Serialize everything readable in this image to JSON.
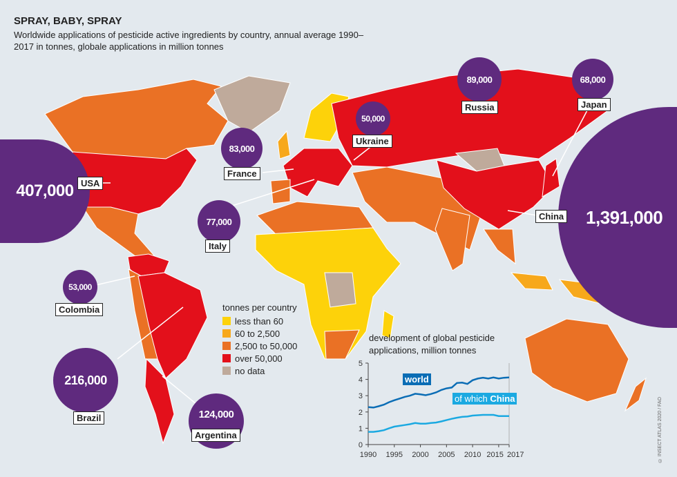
{
  "title": "SPRAY, BABY, SPRAY",
  "subtitle": "Worldwide applications of pesticide active ingredients by country, annual average 1990–2017 in tonnes, globale applications in million tonnes",
  "colors": {
    "less_than_60": "#fdd20a",
    "60_to_2500": "#f7a81b",
    "2500_to_50000": "#ea7125",
    "over_50000": "#e3101b",
    "no_data": "#bfaa9b",
    "bubble": "#5f2a7e",
    "world_line": "#0b6db5",
    "china_line": "#1ba9e1",
    "background": "#e3e9ee"
  },
  "countries": [
    {
      "name": "USA",
      "value": "407,000"
    },
    {
      "name": "China",
      "value": "1,391,000"
    },
    {
      "name": "Brazil",
      "value": "216,000"
    },
    {
      "name": "Argentina",
      "value": "124,000"
    },
    {
      "name": "Russia",
      "value": "89,000"
    },
    {
      "name": "France",
      "value": "83,000"
    },
    {
      "name": "Italy",
      "value": "77,000"
    },
    {
      "name": "Japan",
      "value": "68,000"
    },
    {
      "name": "Colombia",
      "value": "53,000"
    },
    {
      "name": "Ukraine",
      "value": "50,000"
    }
  ],
  "legend": {
    "title": "tonnes per country",
    "items": [
      {
        "label": "less than 60",
        "color": "#fdd20a"
      },
      {
        "label": "60 to 2,500",
        "color": "#f7a81b"
      },
      {
        "label": "2,500 to 50,000",
        "color": "#ea7125"
      },
      {
        "label": "over 50,000",
        "color": "#e3101b"
      },
      {
        "label": "no data",
        "color": "#bfaa9b"
      }
    ]
  },
  "chart_data": {
    "type": "line",
    "title": "development of global pesticide applications, million tonnes",
    "x": [
      1990,
      1991,
      1992,
      1993,
      1994,
      1995,
      1996,
      1997,
      1998,
      1999,
      2000,
      2001,
      2002,
      2003,
      2004,
      2005,
      2006,
      2007,
      2008,
      2009,
      2010,
      2011,
      2012,
      2013,
      2014,
      2015,
      2016,
      2017
    ],
    "xticks": [
      "1990",
      "1995",
      "2000",
      "2005",
      "2010",
      "2015",
      "2017"
    ],
    "yticks": [
      "0",
      "1",
      "2",
      "3",
      "4",
      "5"
    ],
    "ylim": [
      0,
      5
    ],
    "series": [
      {
        "name": "world",
        "color": "#0b6db5",
        "values": [
          2.3,
          2.27,
          2.35,
          2.45,
          2.6,
          2.72,
          2.82,
          2.93,
          3.0,
          3.12,
          3.08,
          3.03,
          3.1,
          3.2,
          3.35,
          3.45,
          3.5,
          3.78,
          3.8,
          3.72,
          3.95,
          4.05,
          4.1,
          4.05,
          4.12,
          4.05,
          4.1,
          4.12
        ]
      },
      {
        "name": "of which China",
        "name_plain": "of which",
        "name_bold": "China",
        "color": "#1ba9e1",
        "values": [
          0.78,
          0.78,
          0.82,
          0.88,
          1.0,
          1.1,
          1.15,
          1.2,
          1.25,
          1.32,
          1.28,
          1.28,
          1.32,
          1.35,
          1.42,
          1.5,
          1.58,
          1.65,
          1.7,
          1.72,
          1.78,
          1.8,
          1.82,
          1.82,
          1.82,
          1.75,
          1.75,
          1.75
        ]
      }
    ]
  },
  "credit": "© INSECT ATLAS 2020 / FAO"
}
